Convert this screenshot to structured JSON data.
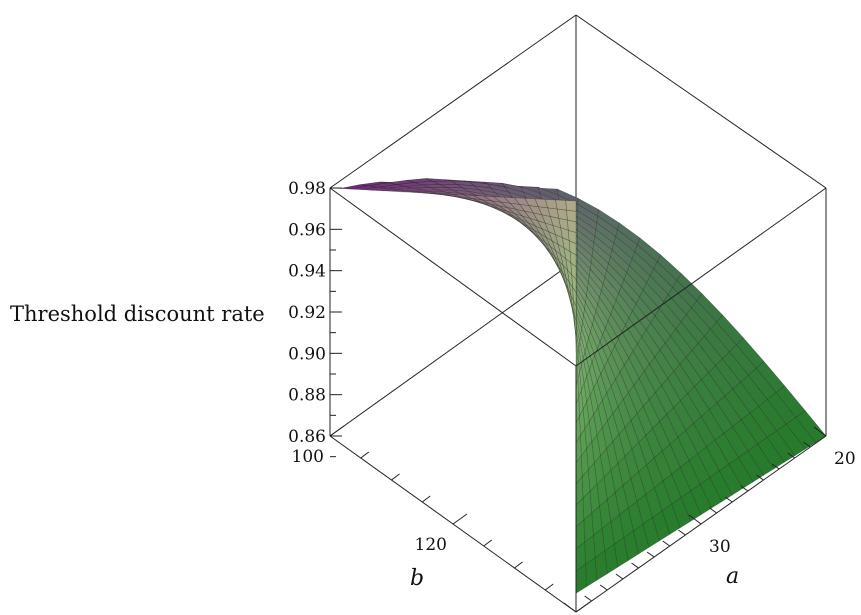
{
  "chart_data": {
    "type": "surface3d",
    "title": "",
    "zlabel": "Threshold discount rate",
    "xlabel": "a",
    "ylabel": "b",
    "x_range": [
      20,
      40
    ],
    "y_range": [
      100,
      140
    ],
    "zlim": [
      0.86,
      0.98
    ],
    "z_ticks": [
      "0.86",
      "0.88",
      "0.90",
      "0.92",
      "0.94",
      "0.96",
      "0.98"
    ],
    "a_ticks": [
      "20",
      "30"
    ],
    "b_ticks": [
      "100",
      "120"
    ],
    "corner_values": [
      {
        "a": 20,
        "b": 100,
        "z": 0.98
      },
      {
        "a": 20,
        "b": 140,
        "z": 0.86
      },
      {
        "a": 40,
        "b": 100,
        "z": 0.89
      },
      {
        "a": 40,
        "b": 140,
        "z": 0.87
      }
    ],
    "grid": false,
    "colors": {
      "high_b_low_a": "#8e2f9e",
      "low_b": "#e9e3b7",
      "high_b": "#2f9a35"
    }
  }
}
